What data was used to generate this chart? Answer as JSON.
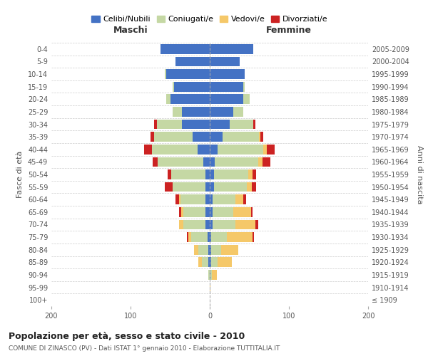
{
  "age_groups": [
    "100+",
    "95-99",
    "90-94",
    "85-89",
    "80-84",
    "75-79",
    "70-74",
    "65-69",
    "60-64",
    "55-59",
    "50-54",
    "45-49",
    "40-44",
    "35-39",
    "30-34",
    "25-29",
    "20-24",
    "15-19",
    "10-14",
    "5-9",
    "0-4"
  ],
  "birth_years": [
    "≤ 1909",
    "1910-1914",
    "1915-1919",
    "1920-1924",
    "1925-1929",
    "1930-1934",
    "1935-1939",
    "1940-1944",
    "1945-1949",
    "1950-1954",
    "1955-1959",
    "1960-1964",
    "1965-1969",
    "1970-1974",
    "1975-1979",
    "1980-1984",
    "1985-1989",
    "1990-1994",
    "1995-1999",
    "2000-2004",
    "2005-2009"
  ],
  "colors": {
    "celibi": "#4472c4",
    "coniugati": "#c5d8a4",
    "vedovi": "#f5c869",
    "divorziati": "#cc2222"
  },
  "males": {
    "celibi": [
      0,
      0,
      0,
      2,
      2,
      3,
      5,
      5,
      5,
      5,
      5,
      8,
      15,
      22,
      35,
      35,
      50,
      45,
      55,
      43,
      62
    ],
    "coniugati": [
      0,
      0,
      2,
      8,
      12,
      20,
      28,
      28,
      32,
      42,
      44,
      58,
      58,
      48,
      32,
      12,
      5,
      2,
      2,
      0,
      0
    ],
    "vedovi": [
      0,
      0,
      0,
      4,
      6,
      4,
      6,
      3,
      2,
      0,
      0,
      0,
      0,
      0,
      0,
      0,
      0,
      0,
      0,
      0,
      0
    ],
    "divorziati": [
      0,
      0,
      0,
      0,
      0,
      2,
      0,
      3,
      4,
      10,
      4,
      6,
      10,
      5,
      3,
      0,
      0,
      0,
      0,
      0,
      0
    ]
  },
  "females": {
    "celibi": [
      0,
      0,
      1,
      2,
      2,
      2,
      4,
      4,
      4,
      5,
      5,
      6,
      10,
      16,
      25,
      30,
      42,
      42,
      44,
      38,
      55
    ],
    "coniugati": [
      0,
      0,
      2,
      8,
      12,
      20,
      28,
      26,
      28,
      42,
      44,
      55,
      58,
      46,
      30,
      12,
      8,
      2,
      0,
      0,
      0
    ],
    "vedovi": [
      0,
      1,
      6,
      18,
      22,
      32,
      26,
      22,
      10,
      6,
      5,
      6,
      4,
      2,
      0,
      0,
      0,
      0,
      0,
      0,
      0
    ],
    "divorziati": [
      0,
      0,
      0,
      0,
      0,
      2,
      3,
      2,
      4,
      6,
      5,
      10,
      10,
      4,
      3,
      0,
      0,
      0,
      0,
      0,
      0
    ]
  },
  "xlim": 200,
  "title": "Popolazione per età, sesso e stato civile - 2010",
  "subtitle": "COMUNE DI ZINASCO (PV) - Dati ISTAT 1° gennaio 2010 - Elaborazione TUTTITALIA.IT",
  "ylabel_left": "Fasce di età",
  "ylabel_right": "Anni di nascita",
  "xlabel_left": "Maschi",
  "xlabel_right": "Femmine",
  "legend_labels": [
    "Celibi/Nubili",
    "Coniugati/e",
    "Vedovi/e",
    "Divorziati/e"
  ],
  "bg_color": "#ffffff",
  "grid_color": "#cccccc"
}
